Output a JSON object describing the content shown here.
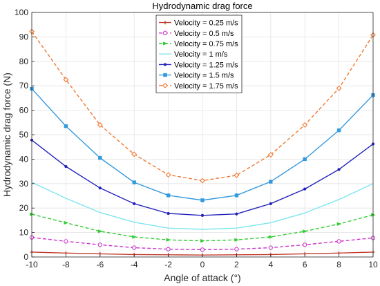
{
  "chart_data": {
    "type": "line",
    "title": "Hydrodynamic drag force",
    "xlabel": "Angle of attack (°)",
    "ylabel": "Hydrodynamic drag force (N)",
    "xlim": [
      -10,
      10
    ],
    "ylim": [
      0,
      100
    ],
    "xticks": [
      -10,
      -8,
      -6,
      -4,
      -2,
      0,
      2,
      4,
      6,
      8,
      10
    ],
    "yticks": [
      0,
      10,
      20,
      30,
      40,
      50,
      60,
      70,
      80,
      90,
      100
    ],
    "grid": true,
    "legend_position": "top-center",
    "x": [
      -10,
      -8,
      -6,
      -4,
      -2,
      0,
      2,
      4,
      6,
      8,
      10
    ],
    "series": [
      {
        "name": "Velocity = 0.25 m/s",
        "color": "#c0392b",
        "dash": "solid",
        "marker": "plus",
        "values": [
          2.0,
          1.6,
          1.3,
          1.0,
          0.9,
          0.8,
          0.9,
          1.0,
          1.3,
          1.6,
          2.0
        ]
      },
      {
        "name": "Velocity = 0.5 m/s",
        "color": "#cc33cc",
        "dash": "dashed",
        "marker": "circle",
        "values": [
          8.0,
          6.4,
          5.0,
          3.8,
          3.2,
          3.0,
          3.2,
          3.8,
          5.0,
          6.4,
          7.8
        ]
      },
      {
        "name": "Velocity = 0.75 m/s",
        "color": "#33cc33",
        "dash": "dashed",
        "marker": "triangle",
        "values": [
          17.5,
          14.0,
          10.5,
          8.2,
          7.0,
          6.6,
          7.0,
          8.2,
          10.5,
          13.5,
          17.2
        ]
      },
      {
        "name": "Velocity = 1 m/s",
        "color": "#7fe5f0",
        "dash": "solid",
        "marker": "none",
        "values": [
          30.5,
          24.0,
          18.2,
          14.2,
          11.8,
          11.3,
          11.8,
          14.0,
          18.0,
          23.5,
          30.0
        ]
      },
      {
        "name": "Velocity = 1.25 m/s",
        "color": "#2222bb",
        "dash": "solid",
        "marker": "dot",
        "values": [
          47.8,
          37.0,
          28.2,
          21.8,
          17.8,
          17.0,
          17.6,
          21.8,
          27.8,
          35.8,
          46.2
        ]
      },
      {
        "name": "Velocity = 1.5 m/s",
        "color": "#3399dd",
        "dash": "solid",
        "marker": "square",
        "values": [
          68.8,
          53.5,
          40.5,
          30.5,
          25.2,
          23.2,
          25.2,
          30.8,
          40.0,
          51.8,
          66.2
        ]
      },
      {
        "name": "Velocity = 1.75 m/s",
        "color": "#f07830",
        "dash": "dashed",
        "marker": "diamond",
        "values": [
          92.2,
          72.5,
          54.0,
          42.0,
          33.6,
          31.2,
          33.4,
          41.8,
          54.0,
          69.0,
          90.8
        ]
      }
    ]
  }
}
